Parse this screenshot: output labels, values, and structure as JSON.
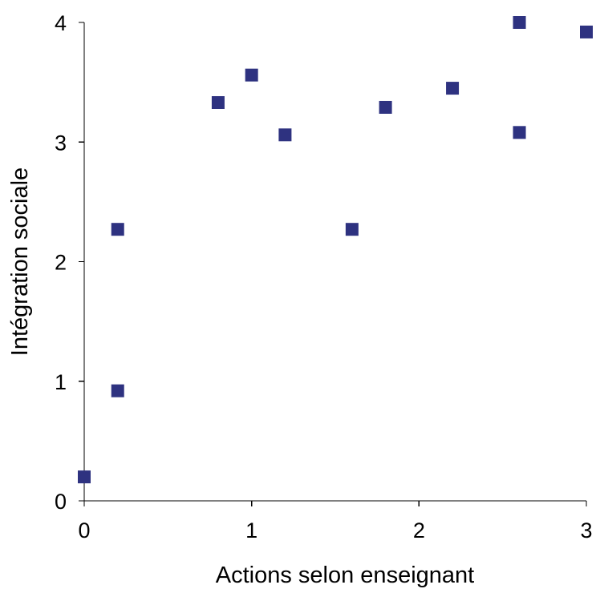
{
  "chart_data": {
    "type": "scatter",
    "title": "",
    "xlabel": "Actions selon enseignant",
    "ylabel": "Intégration sociale",
    "xlim": [
      0,
      3
    ],
    "ylim": [
      0,
      4
    ],
    "xticks": [
      "0",
      "1",
      "2",
      "3"
    ],
    "yticks": [
      "0",
      "1",
      "2",
      "3",
      "4"
    ],
    "grid": false,
    "legend": "none",
    "marker": "square",
    "marker_color": "#2E3280",
    "series": [
      {
        "points": [
          {
            "x": 0.0,
            "y": 0.2
          },
          {
            "x": 0.2,
            "y": 0.92
          },
          {
            "x": 0.2,
            "y": 2.27
          },
          {
            "x": 0.8,
            "y": 3.33
          },
          {
            "x": 1.0,
            "y": 3.56
          },
          {
            "x": 1.2,
            "y": 3.06
          },
          {
            "x": 1.6,
            "y": 2.27
          },
          {
            "x": 1.8,
            "y": 3.29
          },
          {
            "x": 2.2,
            "y": 3.45
          },
          {
            "x": 2.6,
            "y": 4.0
          },
          {
            "x": 2.6,
            "y": 3.08
          },
          {
            "x": 3.0,
            "y": 3.92
          }
        ]
      }
    ]
  }
}
